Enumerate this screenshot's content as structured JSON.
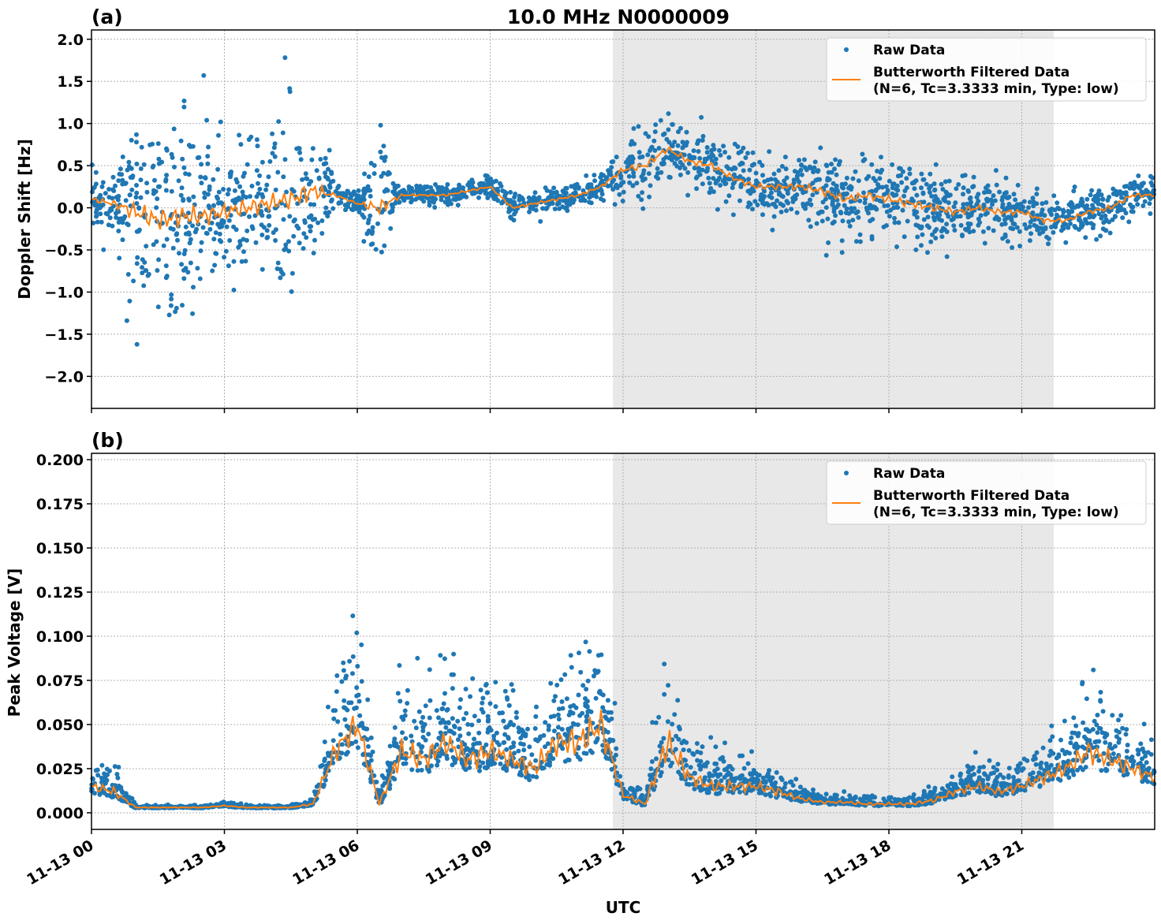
{
  "chart_data": [
    {
      "type": "scatter",
      "panel_label": "(a)",
      "title": "10.0 MHz N0000009",
      "xlabel": "",
      "ylabel": "Doppler Shift [Hz]",
      "x_unit": "hours UTC on 11-13",
      "xlim": [
        0,
        24
      ],
      "ylim": [
        -2.38,
        2.11
      ],
      "yticks": [
        -2.0,
        -1.5,
        -1.0,
        -0.5,
        0.0,
        0.5,
        1.0,
        1.5,
        2.0
      ],
      "ytick_labels": [
        "−2.0",
        "−1.5",
        "−1.0",
        "−0.5",
        "0.0",
        "0.5",
        "1.0",
        "1.5",
        "2.0"
      ],
      "grid": true,
      "legend_position": "top-right",
      "shaded_interval_hours": [
        11.77,
        21.72
      ],
      "shade_color": "#e8e8e8",
      "series": [
        {
          "name": "Raw Data",
          "kind": "points",
          "color": "#1f77b4",
          "x": [
            0,
            0.5,
            1,
            1.5,
            2,
            2.5,
            3,
            3.5,
            4,
            4.5,
            5,
            5.5,
            6,
            6.5,
            7,
            7.5,
            8,
            8.5,
            9,
            9.5,
            10,
            10.5,
            11,
            11.5,
            12,
            12.5,
            13,
            13.5,
            14,
            14.5,
            15,
            15.5,
            16,
            16.5,
            17,
            17.5,
            18,
            18.5,
            19,
            19.5,
            20,
            20.5,
            21,
            21.5,
            22,
            22.5,
            23,
            23.5,
            24
          ],
          "spread": [
            0.3,
            0.35,
            1.1,
            1.2,
            1.2,
            1.1,
            0.9,
            1.0,
            1.0,
            1.1,
            1.1,
            0.15,
            0.12,
            0.9,
            0.12,
            0.12,
            0.12,
            0.12,
            0.12,
            0.15,
            0.15,
            0.15,
            0.15,
            0.15,
            0.35,
            0.4,
            0.35,
            0.35,
            0.35,
            0.3,
            0.35,
            0.35,
            0.4,
            0.45,
            0.45,
            0.45,
            0.45,
            0.45,
            0.45,
            0.4,
            0.35,
            0.35,
            0.3,
            0.25,
            0.25,
            0.25,
            0.3,
            0.25,
            0.2
          ]
        },
        {
          "name": "Butterworth Filtered Data\n(N=6, Tc=3.3333 min, Type: low)",
          "kind": "line",
          "color": "#ff7f0e",
          "x": [
            0,
            0.5,
            1,
            1.5,
            2,
            2.5,
            3,
            3.5,
            4,
            4.5,
            5,
            5.5,
            6,
            6.5,
            7,
            7.5,
            8,
            8.5,
            9,
            9.5,
            10,
            10.5,
            11,
            11.5,
            12,
            12.5,
            13,
            13.5,
            14,
            14.5,
            15,
            15.5,
            16,
            16.5,
            17,
            17.5,
            18,
            18.5,
            19,
            19.5,
            20,
            20.5,
            21,
            21.5,
            22,
            22.5,
            23,
            23.5,
            24
          ],
          "y": [
            0.1,
            0.05,
            -0.05,
            -0.15,
            -0.1,
            -0.1,
            -0.05,
            0.0,
            0.05,
            0.1,
            0.2,
            0.15,
            0.05,
            0.0,
            0.15,
            0.15,
            0.15,
            0.2,
            0.25,
            0.0,
            0.05,
            0.1,
            0.15,
            0.25,
            0.45,
            0.5,
            0.7,
            0.55,
            0.5,
            0.35,
            0.25,
            0.25,
            0.25,
            0.2,
            0.1,
            0.15,
            0.1,
            0.05,
            0.0,
            -0.05,
            0.0,
            -0.05,
            -0.05,
            -0.15,
            -0.15,
            -0.05,
            0.0,
            0.15,
            0.15
          ]
        }
      ]
    },
    {
      "type": "scatter",
      "panel_label": "(b)",
      "title": "",
      "xlabel": "UTC",
      "ylabel": "Peak Voltage [V]",
      "x_unit": "hours UTC on 11-13",
      "xlim": [
        0,
        24
      ],
      "ylim": [
        -0.0094,
        0.2036
      ],
      "yticks": [
        0.0,
        0.025,
        0.05,
        0.075,
        0.1,
        0.125,
        0.15,
        0.175,
        0.2
      ],
      "ytick_labels": [
        "0.000",
        "0.025",
        "0.050",
        "0.075",
        "0.100",
        "0.125",
        "0.150",
        "0.175",
        "0.200"
      ],
      "xticks": [
        0,
        3,
        6,
        9,
        12,
        15,
        18,
        21
      ],
      "xtick_labels": [
        "11-13 00",
        "11-13 03",
        "11-13 06",
        "11-13 09",
        "11-13 12",
        "11-13 15",
        "11-13 18",
        "11-13 21"
      ],
      "grid": true,
      "legend_position": "top-right",
      "shaded_interval_hours": [
        11.77,
        21.72
      ],
      "shade_color": "#e8e8e8",
      "series": [
        {
          "name": "Raw Data",
          "kind": "points",
          "color": "#1f77b4",
          "x": [
            0,
            0.5,
            1,
            1.5,
            2,
            2.5,
            3,
            3.5,
            4,
            4.5,
            5,
            5.5,
            6,
            6.5,
            7,
            7.5,
            8,
            8.5,
            9,
            9.5,
            10,
            10.5,
            11,
            11.5,
            12,
            12.5,
            13,
            13.5,
            14,
            14.5,
            15,
            15.5,
            16,
            16.5,
            17,
            17.5,
            18,
            18.5,
            19,
            19.5,
            20,
            20.5,
            21,
            21.5,
            22,
            22.5,
            23,
            23.5,
            24
          ],
          "spread": [
            0.012,
            0.012,
            0.001,
            0.001,
            0.001,
            0.001,
            0.0015,
            0.0012,
            0.001,
            0.001,
            0.003,
            0.03,
            0.04,
            0.005,
            0.035,
            0.03,
            0.035,
            0.03,
            0.03,
            0.025,
            0.025,
            0.035,
            0.04,
            0.045,
            0.01,
            0.004,
            0.045,
            0.02,
            0.015,
            0.015,
            0.012,
            0.012,
            0.006,
            0.004,
            0.004,
            0.004,
            0.004,
            0.004,
            0.006,
            0.01,
            0.012,
            0.01,
            0.012,
            0.018,
            0.02,
            0.03,
            0.025,
            0.02,
            0.015
          ]
        },
        {
          "name": "Butterworth Filtered Data\n(N=6, Tc=3.3333 min, Type: low)",
          "kind": "line",
          "color": "#ff7f0e",
          "x": [
            0,
            0.5,
            1,
            1.5,
            2,
            2.5,
            3,
            3.5,
            4,
            4.5,
            5,
            5.5,
            6,
            6.5,
            7,
            7.5,
            8,
            8.5,
            9,
            9.5,
            10,
            10.5,
            11,
            11.5,
            12,
            12.5,
            13,
            13.5,
            14,
            14.5,
            15,
            15.5,
            16,
            16.5,
            17,
            17.5,
            18,
            18.5,
            19,
            19.5,
            20,
            20.5,
            21,
            21.5,
            22,
            22.5,
            23,
            23.5,
            24
          ],
          "y": [
            0.015,
            0.012,
            0.003,
            0.003,
            0.003,
            0.003,
            0.004,
            0.003,
            0.003,
            0.003,
            0.005,
            0.035,
            0.05,
            0.005,
            0.035,
            0.03,
            0.04,
            0.03,
            0.035,
            0.03,
            0.025,
            0.04,
            0.04,
            0.05,
            0.01,
            0.005,
            0.04,
            0.02,
            0.015,
            0.015,
            0.015,
            0.012,
            0.008,
            0.006,
            0.006,
            0.005,
            0.005,
            0.005,
            0.007,
            0.012,
            0.015,
            0.012,
            0.015,
            0.02,
            0.025,
            0.035,
            0.03,
            0.025,
            0.02
          ]
        }
      ]
    }
  ]
}
